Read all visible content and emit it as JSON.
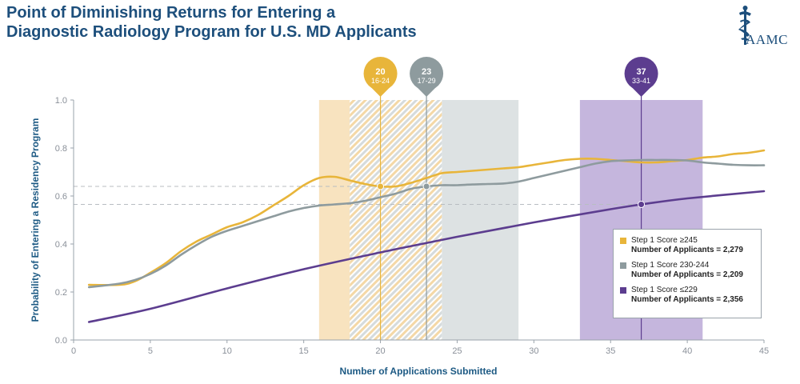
{
  "header": {
    "title_line1": "Point of Diminishing Returns for Entering a",
    "title_line2": "Diagnostic Radiology Program for U.S. MD Applicants",
    "logo_text": "AAMC"
  },
  "colors": {
    "high": "#e8b53a",
    "mid": "#8e9b9e",
    "low": "#5c3d8f",
    "band_high": "#f8e3bf",
    "band_mid": "#dde2e3",
    "band_low": "#c5b6dd",
    "axis_text": "#8a9099",
    "axis_label": "#1d5a84",
    "title": "#1d4f7c"
  },
  "chart_data": {
    "type": "line",
    "title": "Point of Diminishing Returns for Entering a Diagnostic Radiology Program for U.S. MD Applicants",
    "xlabel": "Number of Applications Submitted",
    "ylabel": "Probability of Entering a Residency Program",
    "xlim": [
      0,
      45
    ],
    "ylim": [
      0,
      1
    ],
    "xticks": [
      0,
      5,
      10,
      15,
      20,
      25,
      30,
      35,
      40,
      45
    ],
    "yticks": [
      0.0,
      0.2,
      0.4,
      0.6,
      0.8,
      1.0
    ],
    "xtick_labels": [
      "0",
      "5",
      "10",
      "15",
      "20",
      "25",
      "30",
      "35",
      "40",
      "45"
    ],
    "ytick_labels": [
      "0.0",
      "0.2",
      "0.4",
      "0.6",
      "0.8",
      "1.0"
    ],
    "grid": false,
    "series": [
      {
        "key": "high",
        "name": "Step 1 Score ≥245",
        "applicants": "Number of Applicants = 2,279",
        "x": [
          1,
          3,
          4,
          5,
          6,
          7,
          8,
          9,
          10,
          11,
          12,
          13,
          14,
          15,
          16,
          17,
          18,
          19,
          20,
          21,
          22,
          23,
          24,
          25,
          26,
          27,
          28,
          29,
          30,
          31,
          32,
          33,
          34,
          35,
          36,
          37,
          38,
          39,
          40,
          41,
          42,
          43,
          44,
          45
        ],
        "y": [
          0.23,
          0.23,
          0.245,
          0.28,
          0.32,
          0.37,
          0.41,
          0.44,
          0.47,
          0.49,
          0.52,
          0.56,
          0.6,
          0.645,
          0.675,
          0.68,
          0.665,
          0.65,
          0.64,
          0.64,
          0.655,
          0.675,
          0.695,
          0.7,
          0.705,
          0.71,
          0.715,
          0.72,
          0.73,
          0.74,
          0.75,
          0.755,
          0.755,
          0.75,
          0.745,
          0.74,
          0.74,
          0.745,
          0.75,
          0.76,
          0.765,
          0.775,
          0.78,
          0.79
        ],
        "pin": {
          "value": "20",
          "range": "16-24",
          "x": 20,
          "y": 0.64,
          "band": [
            16,
            24
          ],
          "band_solid": [
            16,
            18
          ]
        }
      },
      {
        "key": "mid",
        "name": "Step 1 Score 230-244",
        "applicants": "Number of Applicants = 2,209",
        "x": [
          1,
          3,
          4,
          5,
          6,
          7,
          8,
          9,
          10,
          11,
          12,
          13,
          14,
          15,
          16,
          17,
          18,
          19,
          20,
          21,
          22,
          23,
          24,
          25,
          26,
          27,
          28,
          29,
          30,
          31,
          32,
          33,
          34,
          35,
          36,
          37,
          38,
          39,
          40,
          41,
          42,
          43,
          44,
          45
        ],
        "y": [
          0.22,
          0.235,
          0.25,
          0.275,
          0.31,
          0.355,
          0.395,
          0.43,
          0.455,
          0.475,
          0.495,
          0.515,
          0.535,
          0.55,
          0.56,
          0.565,
          0.57,
          0.58,
          0.595,
          0.61,
          0.63,
          0.64,
          0.645,
          0.645,
          0.648,
          0.65,
          0.652,
          0.66,
          0.675,
          0.69,
          0.705,
          0.72,
          0.735,
          0.745,
          0.748,
          0.75,
          0.75,
          0.75,
          0.748,
          0.74,
          0.735,
          0.73,
          0.728,
          0.728
        ],
        "pin": {
          "value": "23",
          "range": "17-29",
          "x": 23,
          "y": 0.64,
          "band": [
            17,
            29
          ],
          "band_solid": [
            24,
            29
          ]
        }
      },
      {
        "key": "low",
        "name": "Step 1 Score ≤229",
        "applicants": "Number of Applicants = 2,356",
        "x": [
          1,
          5,
          10,
          15,
          20,
          25,
          30,
          35,
          37,
          40,
          45
        ],
        "y": [
          0.075,
          0.13,
          0.215,
          0.295,
          0.365,
          0.43,
          0.49,
          0.545,
          0.565,
          0.59,
          0.62
        ],
        "pin": {
          "value": "37",
          "range": "33-41",
          "x": 37,
          "y": 0.565,
          "band": [
            33,
            41
          ],
          "band_solid": [
            33,
            41
          ]
        }
      }
    ],
    "legend_position": "lower-right"
  }
}
